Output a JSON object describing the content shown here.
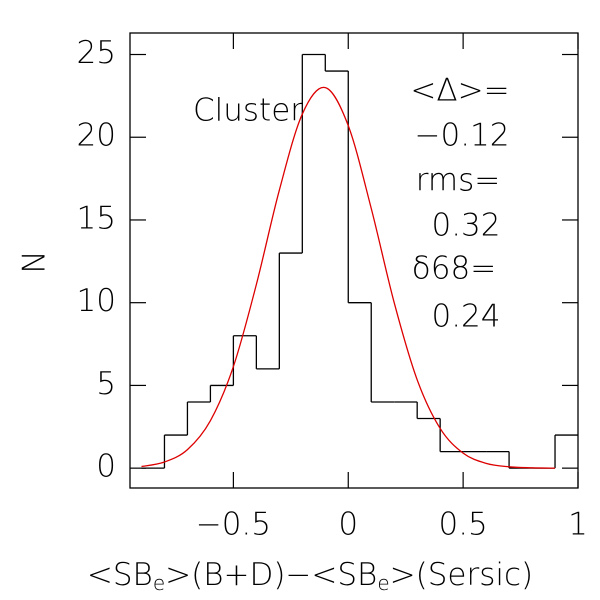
{
  "chart_data": {
    "type": "histogram",
    "bins": [
      -0.9,
      -0.8,
      -0.7,
      -0.6,
      -0.5,
      -0.4,
      -0.3,
      -0.2,
      -0.1,
      0,
      0.1,
      0.2,
      0.3,
      0.4,
      0.5,
      0.6,
      0.7,
      0.8,
      0.9,
      1.0
    ],
    "values": [
      0,
      2,
      4,
      5,
      8,
      6,
      13,
      25,
      24,
      10,
      4,
      4,
      3,
      1,
      1,
      1,
      0,
      0,
      2
    ],
    "color": "#000000",
    "fit": {
      "color": "#dd0000",
      "x": [
        -0.9,
        -0.8,
        -0.7,
        -0.6,
        -0.5,
        -0.4,
        -0.3,
        -0.2,
        -0.1,
        0,
        0.1,
        0.2,
        0.3,
        0.4,
        0.5,
        0.6,
        0.7,
        0.8,
        0.9
      ],
      "values": [
        0.1,
        0.37,
        1.12,
        2.87,
        6.14,
        11.1,
        16.8,
        21.4,
        23.0,
        20.7,
        15.7,
        10.0,
        5.34,
        2.4,
        0.91,
        0.29,
        0.08,
        0.02,
        0.0
      ]
    },
    "xlim": [
      -0.95,
      1.0
    ],
    "ylim": [
      -1.2,
      26.3
    ],
    "xticks": [
      {
        "value": -0.5,
        "label": "−0.5"
      },
      0,
      0.5,
      1
    ],
    "yticks": [
      0,
      5,
      10,
      15,
      20,
      25
    ],
    "x_label": [
      "<SB",
      "e",
      ">(B+D)−<SB",
      "e",
      ">(Sersic)"
    ],
    "y_label": "N",
    "annotations": [
      "Cluster",
      "<Δ>=",
      "−0.12",
      "rms=",
      "0.32",
      "δ68=",
      "0.24"
    ]
  }
}
